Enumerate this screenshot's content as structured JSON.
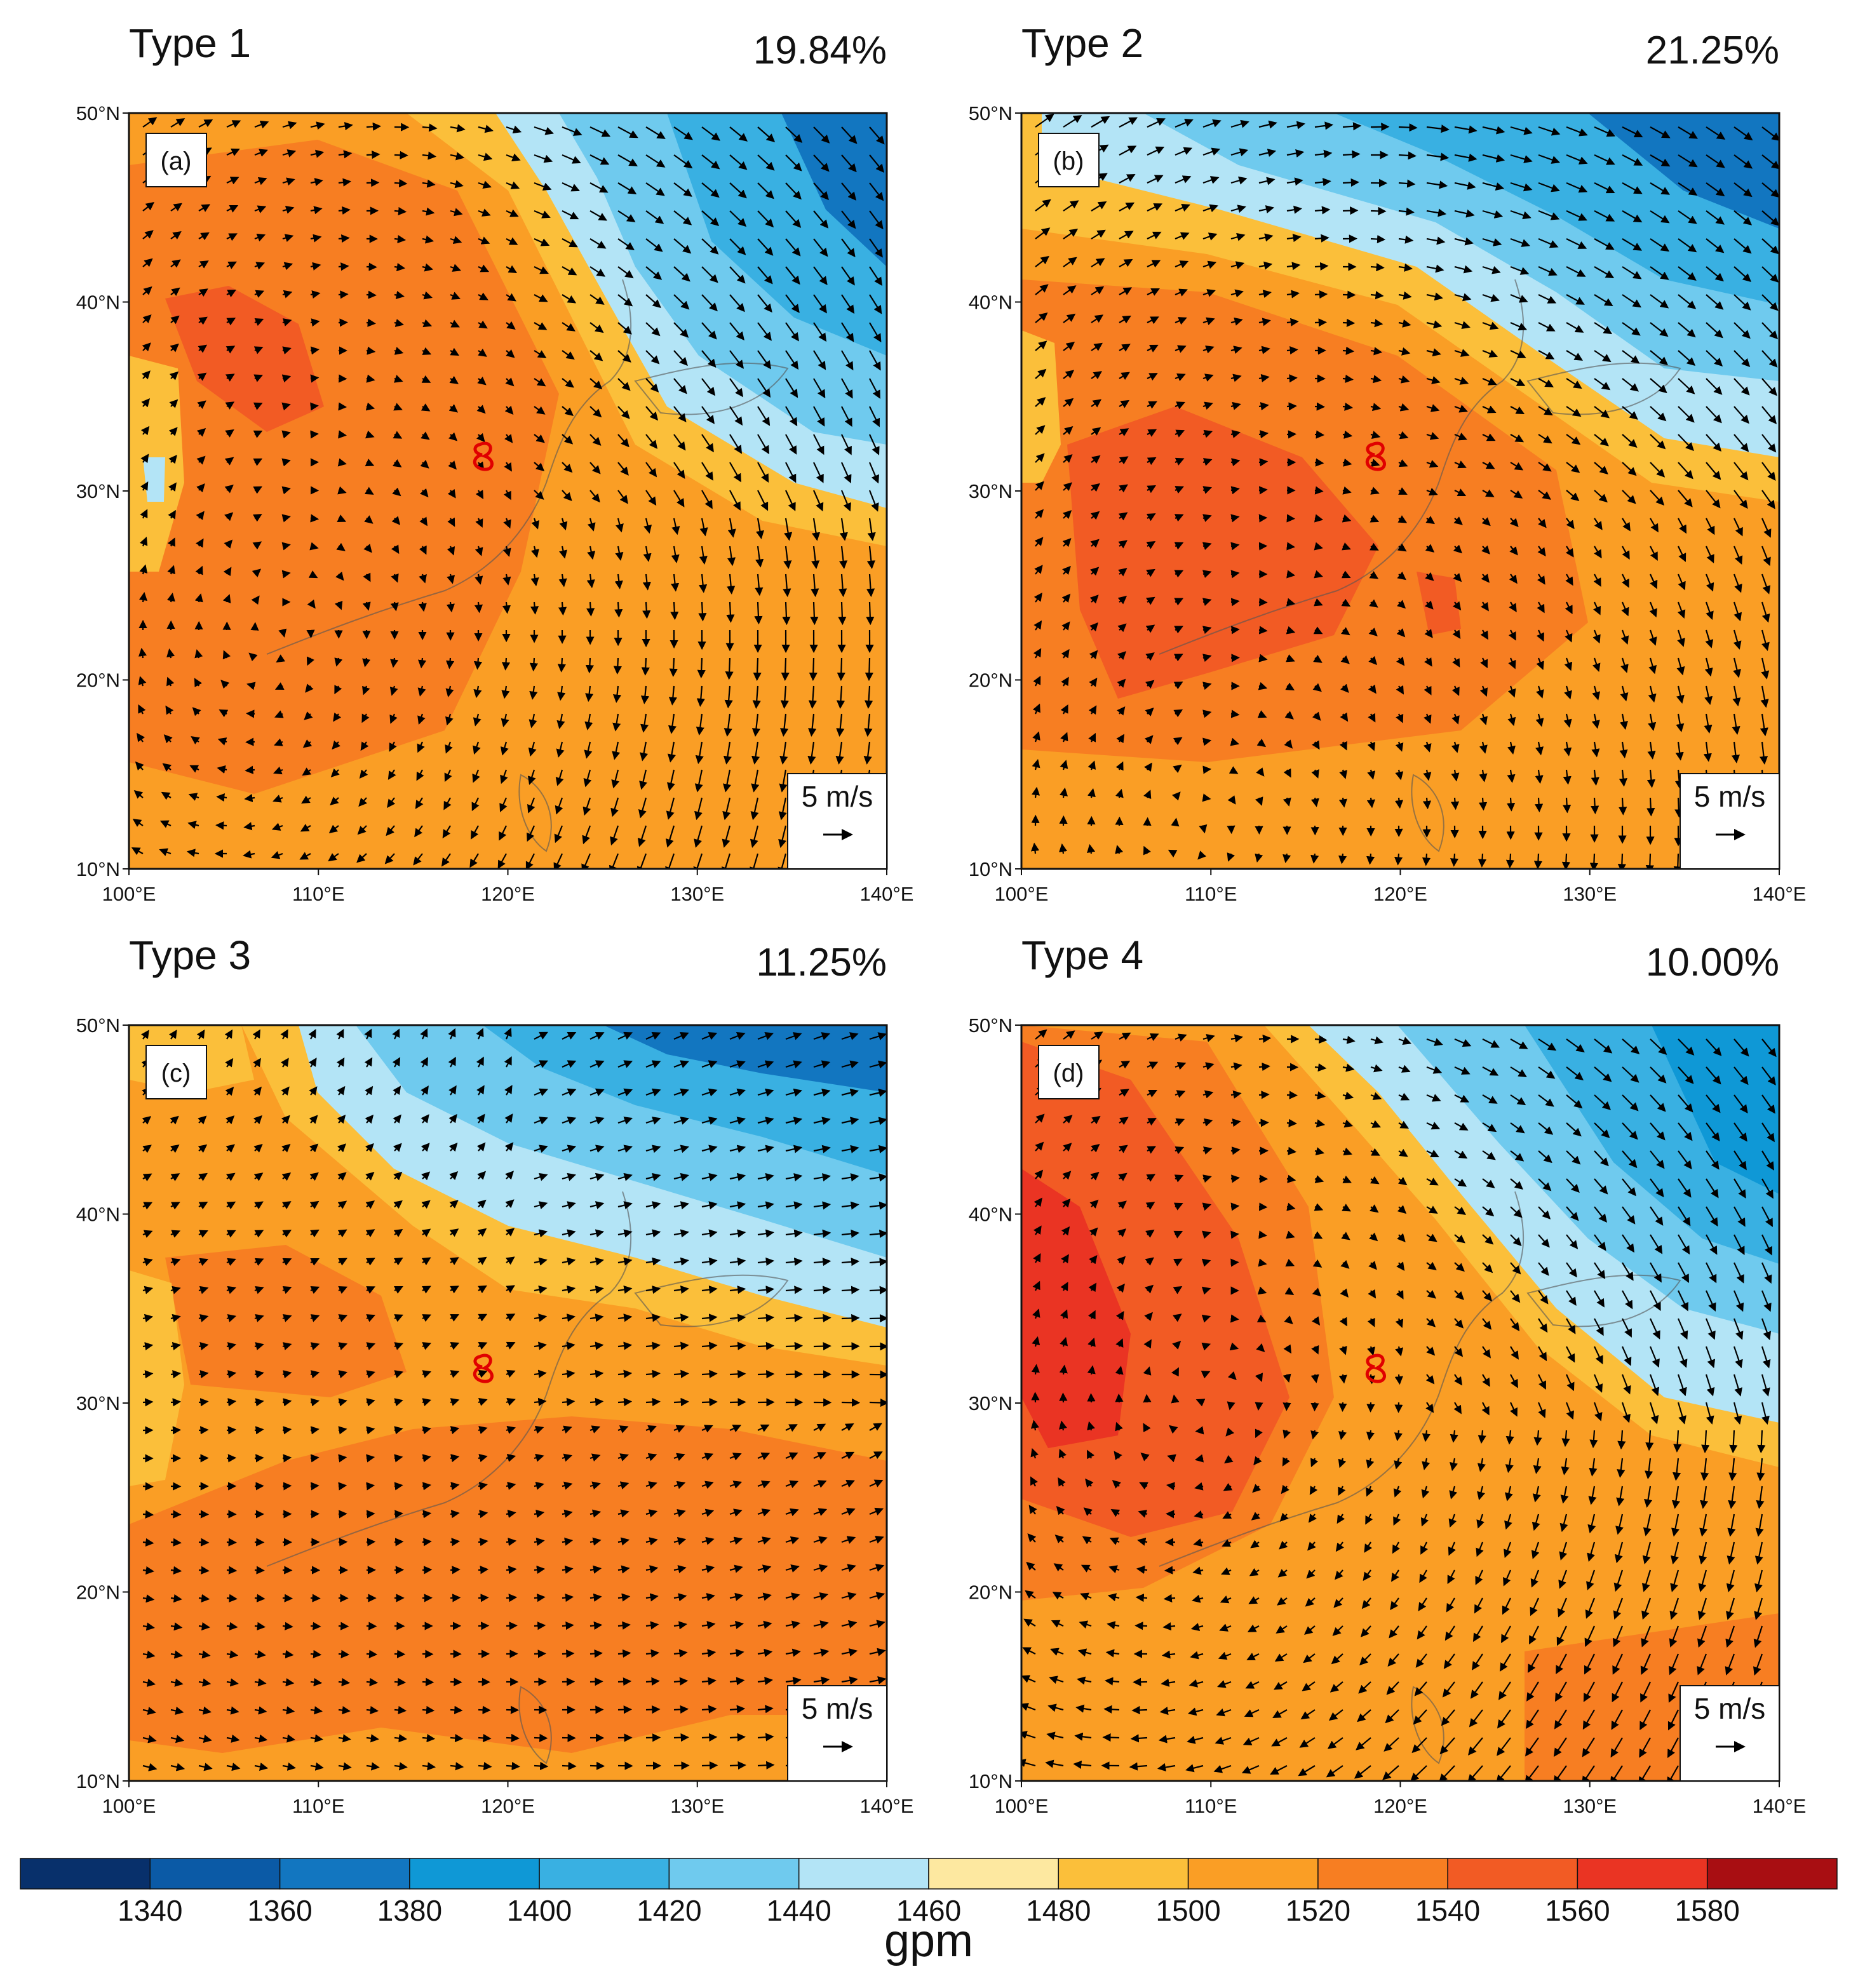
{
  "figure": {
    "colorbar": {
      "colors": [
        "#08306b",
        "#0b5aa6",
        "#1276c0",
        "#0f98d6",
        "#39b0e2",
        "#6fcaee",
        "#b3e4f6",
        "#fde8a0",
        "#fbbf3a",
        "#fa9e25",
        "#f77e22",
        "#f25b24",
        "#ea3423",
        "#a80e12"
      ],
      "levels": [
        1340,
        1360,
        1380,
        1400,
        1420,
        1440,
        1460,
        1480,
        1500,
        1520,
        1540,
        1560,
        1580
      ],
      "tick_labels": [
        "1340",
        "1360",
        "1380",
        "1400",
        "1420",
        "1440",
        "1460",
        "1480",
        "1500",
        "1520",
        "1540",
        "1560",
        "1580"
      ],
      "unit": "gpm"
    },
    "axes": {
      "lon_range": [
        100,
        140
      ],
      "lat_range": [
        10,
        50
      ],
      "lon_ticks": [
        100,
        110,
        120,
        130,
        140
      ],
      "lat_ticks": [
        10,
        20,
        30,
        40,
        50
      ],
      "lon_labels": [
        "100°E",
        "110°E",
        "120°E",
        "130°E",
        "140°E"
      ],
      "lat_labels": [
        "10°N",
        "20°N",
        "30°N",
        "40°N",
        "50°N"
      ]
    },
    "reference_vector": {
      "label": "5 m/s",
      "speed": 5
    },
    "site_marker_color": "#e00000",
    "panels": [
      {
        "id": "a",
        "title": "Type 1",
        "frequency": "19.84%",
        "label": "(a)"
      },
      {
        "id": "b",
        "title": "Type 2",
        "frequency": "21.25%",
        "label": "(b)"
      },
      {
        "id": "c",
        "title": "Type 3",
        "frequency": "11.25%",
        "label": "(c)"
      },
      {
        "id": "d",
        "title": "Type 4",
        "frequency": "10.00%",
        "label": "(d)"
      }
    ]
  }
}
